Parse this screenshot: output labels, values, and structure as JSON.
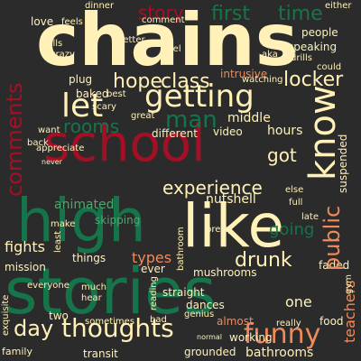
{
  "palette": {
    "background": "#2b2b2b",
    "cream": "#fff1b8",
    "red": "#a50f26",
    "orange": "#f08a5a",
    "green": "#15744a",
    "light_green": "#4aa96b"
  },
  "words": {
    "chains": "chains",
    "school": "school",
    "high": "high",
    "like": "like",
    "stories": "stories",
    "day": "day",
    "thoughts": "thoughts",
    "funny": "funny",
    "getting": "getting",
    "know": "know",
    "comments": "comments",
    "first": "first",
    "time": "time",
    "story": "story",
    "hope": "hope",
    "class": "class",
    "let": "let",
    "man": "man",
    "rooms": "rooms",
    "locker": "locker",
    "got": "got",
    "experience": "experience",
    "going": "going",
    "public": "public",
    "fights": "fights",
    "types": "types",
    "drunk": "drunk",
    "mission": "mission",
    "things": "things",
    "one": "one",
    "teachers": "teachers",
    "hours": "hours",
    "suspended": "suspended",
    "nutshell": "nutshell",
    "animated": "animated",
    "skipping": "skipping",
    "middle": "middle",
    "intrusive": "intrusive",
    "watching": "watching",
    "video": "video",
    "different": "different",
    "baked": "baked",
    "plug": "plug",
    "scary": "scary",
    "best": "best",
    "great": "great",
    "love": "love",
    "feels": "feels",
    "crazy": "crazy",
    "balls": "balls",
    "better": "better",
    "dinner": "dinner",
    "comment": "comment",
    "people": "people",
    "speaking": "speaking",
    "drills": "drills",
    "could": "could",
    "either": "either",
    "aka": "aka",
    "appreciate": "appreciate",
    "want": "want",
    "back": "back",
    "make": "make",
    "least": "least",
    "ever": "ever",
    "mushrooms": "mushrooms",
    "straight": "straight",
    "dances": "dances",
    "genius": "genius",
    "almost": "almost",
    "faded": "faded",
    "food": "food",
    "really": "really",
    "working": "working",
    "bathrooms": "bathrooms",
    "grounded": "grounded",
    "transit": "transit",
    "family": "family",
    "two": "two",
    "sometimes": "sometimes",
    "bad": "bad",
    "everyone": "everyone",
    "much": "much",
    "hear": "hear",
    "reading": "reading",
    "late": "late",
    "full": "full",
    "else": "else",
    "gym": "gym",
    "pretty": "pretty",
    "bathroom": "bathroom",
    "normal": "normal",
    "exquisite": "exquisite",
    "never": "never",
    "feel": "feel"
  }
}
